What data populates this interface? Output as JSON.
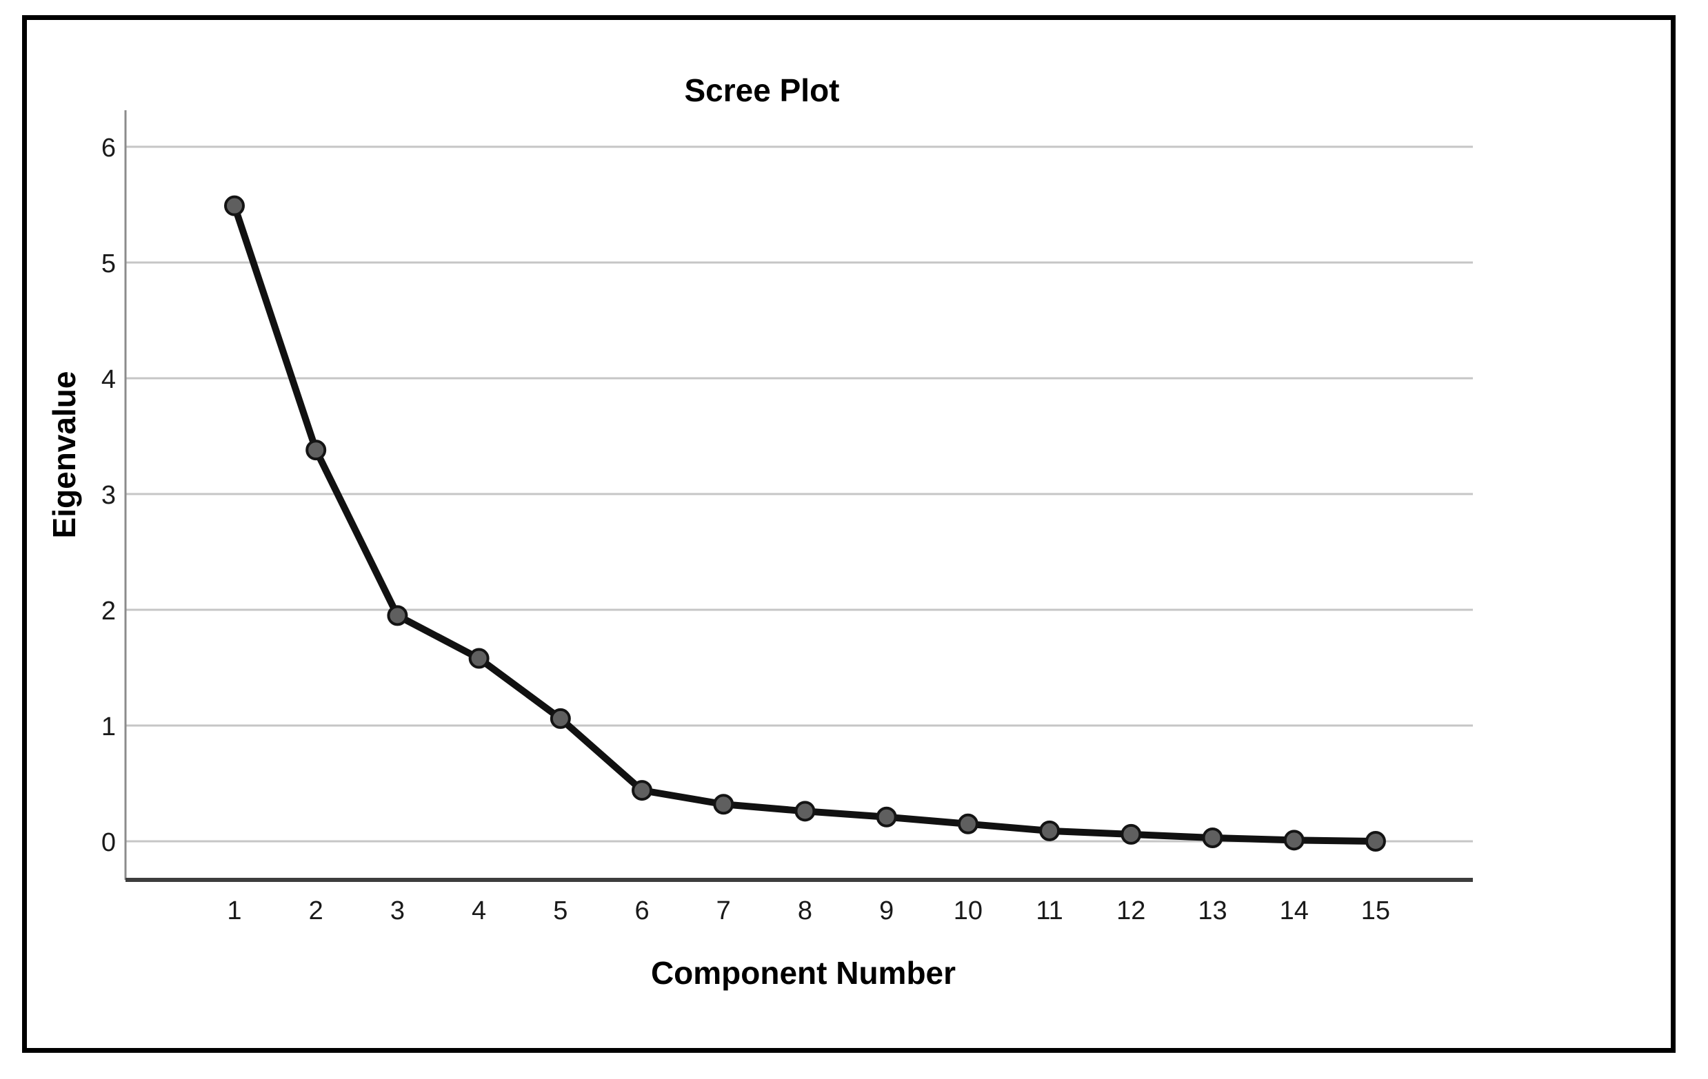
{
  "figure": {
    "background_color": "#ffffff",
    "frame_color": "#000000"
  },
  "chart_data": {
    "type": "line",
    "title": "Scree Plot",
    "xlabel": "Component Number",
    "ylabel": "Eigenvalue",
    "categories": [
      1,
      2,
      3,
      4,
      5,
      6,
      7,
      8,
      9,
      10,
      11,
      12,
      13,
      14,
      15
    ],
    "series": [
      {
        "name": "Eigenvalue",
        "values": [
          5.49,
          3.38,
          1.95,
          1.58,
          1.06,
          0.44,
          0.32,
          0.26,
          0.21,
          0.15,
          0.09,
          0.06,
          0.03,
          0.01,
          0.0
        ]
      }
    ],
    "yticks": [
      0,
      1,
      2,
      3,
      4,
      5,
      6
    ],
    "xticks": [
      1,
      2,
      3,
      4,
      5,
      6,
      7,
      8,
      9,
      10,
      11,
      12,
      13,
      14,
      15
    ],
    "ylim": [
      0,
      6.3
    ],
    "grid": true,
    "gridlines": "horizontal-only",
    "legend": false,
    "line_color": "#111111",
    "marker_fill": "#5f5f5f",
    "marker_stroke": "#141414",
    "gridline_color": "#c6c6c6",
    "yaxis_color": "#8c8c8c",
    "xaxis_color": "#3d3d3d",
    "text_color": "#000000"
  }
}
